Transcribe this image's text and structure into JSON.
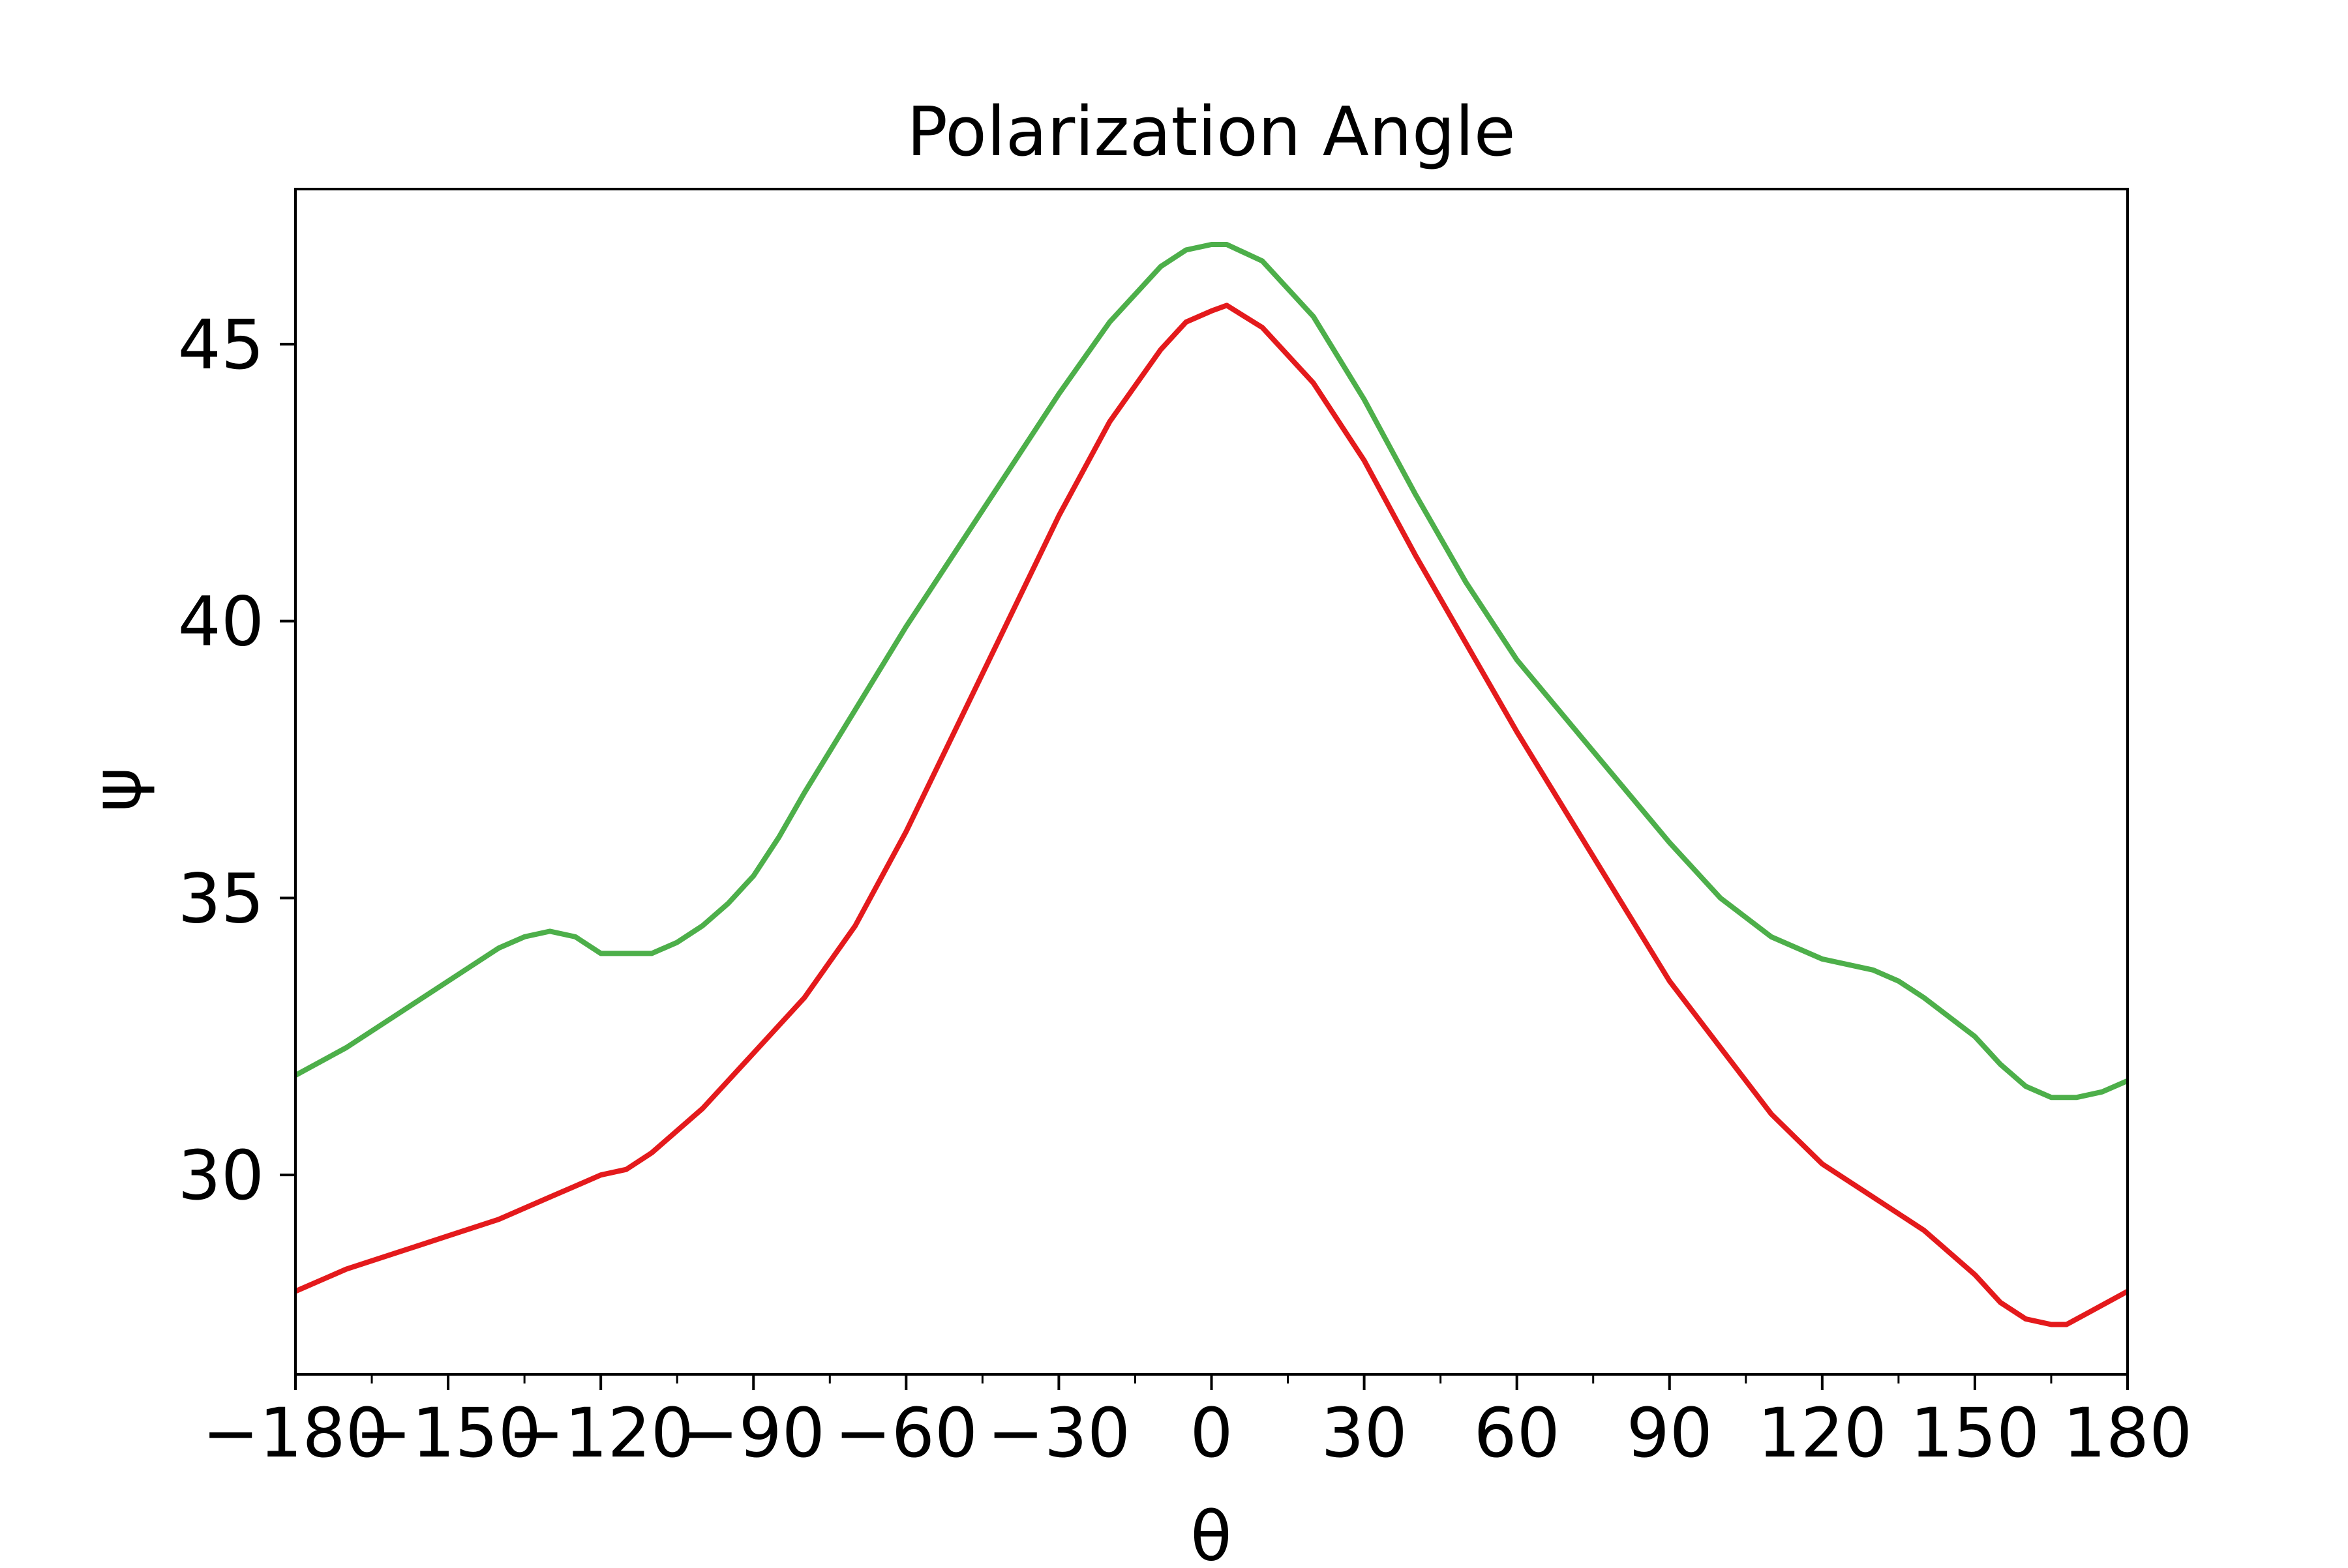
{
  "chart_data": {
    "type": "line",
    "title": "Polarization Angle",
    "xlabel": "θ",
    "ylabel": "ψ",
    "xlim": [
      -180,
      180
    ],
    "ylim": [
      26.4,
      47.8
    ],
    "grid": false,
    "legend": "none",
    "x_ticks": [
      -180,
      -150,
      -120,
      -90,
      -60,
      -30,
      0,
      30,
      60,
      90,
      120,
      150,
      180
    ],
    "x_tick_labels": [
      "−180",
      "−150",
      "−120",
      "−90",
      "−60",
      "−30",
      "0",
      "30",
      "60",
      "90",
      "120",
      "150",
      "180"
    ],
    "x_minor_ticks": [
      -165,
      -135,
      -105,
      -75,
      -45,
      -15,
      15,
      45,
      75,
      105,
      135,
      165
    ],
    "y_ticks": [
      30,
      35,
      40,
      45
    ],
    "y_tick_labels": [
      "30",
      "35",
      "40",
      "45"
    ],
    "series": [
      {
        "color": "#4daf4a",
        "points": [
          [
            -180,
            31.8
          ],
          [
            -170,
            32.3
          ],
          [
            -160,
            32.9
          ],
          [
            -150,
            33.5
          ],
          [
            -140,
            34.1
          ],
          [
            -135,
            34.3
          ],
          [
            -130,
            34.4
          ],
          [
            -125,
            34.3
          ],
          [
            -120,
            34.0
          ],
          [
            -115,
            34.0
          ],
          [
            -110,
            34.0
          ],
          [
            -105,
            34.2
          ],
          [
            -100,
            34.5
          ],
          [
            -95,
            34.9
          ],
          [
            -90,
            35.4
          ],
          [
            -85,
            36.1
          ],
          [
            -80,
            36.9
          ],
          [
            -70,
            38.4
          ],
          [
            -60,
            39.9
          ],
          [
            -50,
            41.3
          ],
          [
            -40,
            42.7
          ],
          [
            -30,
            44.1
          ],
          [
            -20,
            45.4
          ],
          [
            -10,
            46.4
          ],
          [
            -5,
            46.7
          ],
          [
            0,
            46.8
          ],
          [
            3,
            46.8
          ],
          [
            10,
            46.5
          ],
          [
            20,
            45.5
          ],
          [
            30,
            44.0
          ],
          [
            40,
            42.3
          ],
          [
            50,
            40.7
          ],
          [
            60,
            39.3
          ],
          [
            70,
            38.2
          ],
          [
            80,
            37.1
          ],
          [
            90,
            36.0
          ],
          [
            100,
            35.0
          ],
          [
            110,
            34.3
          ],
          [
            120,
            33.9
          ],
          [
            130,
            33.7
          ],
          [
            135,
            33.5
          ],
          [
            140,
            33.2
          ],
          [
            150,
            32.5
          ],
          [
            155,
            32.0
          ],
          [
            160,
            31.6
          ],
          [
            165,
            31.4
          ],
          [
            170,
            31.4
          ],
          [
            175,
            31.5
          ],
          [
            180,
            31.7
          ]
        ]
      },
      {
        "color": "#e41a1c",
        "points": [
          [
            -180,
            27.9
          ],
          [
            -170,
            28.3
          ],
          [
            -160,
            28.6
          ],
          [
            -150,
            28.9
          ],
          [
            -140,
            29.2
          ],
          [
            -130,
            29.6
          ],
          [
            -125,
            29.8
          ],
          [
            -120,
            30.0
          ],
          [
            -115,
            30.1
          ],
          [
            -110,
            30.4
          ],
          [
            -100,
            31.2
          ],
          [
            -90,
            32.2
          ],
          [
            -80,
            33.2
          ],
          [
            -70,
            34.5
          ],
          [
            -60,
            36.2
          ],
          [
            -50,
            38.1
          ],
          [
            -40,
            40.0
          ],
          [
            -30,
            41.9
          ],
          [
            -20,
            43.6
          ],
          [
            -10,
            44.9
          ],
          [
            -5,
            45.4
          ],
          [
            0,
            45.6
          ],
          [
            3,
            45.7
          ],
          [
            10,
            45.3
          ],
          [
            20,
            44.3
          ],
          [
            30,
            42.9
          ],
          [
            40,
            41.2
          ],
          [
            50,
            39.6
          ],
          [
            60,
            38.0
          ],
          [
            70,
            36.5
          ],
          [
            80,
            35.0
          ],
          [
            90,
            33.5
          ],
          [
            100,
            32.3
          ],
          [
            110,
            31.1
          ],
          [
            120,
            30.2
          ],
          [
            130,
            29.6
          ],
          [
            140,
            29.0
          ],
          [
            150,
            28.2
          ],
          [
            155,
            27.7
          ],
          [
            160,
            27.4
          ],
          [
            165,
            27.3
          ],
          [
            168,
            27.3
          ],
          [
            172,
            27.5
          ],
          [
            180,
            27.9
          ]
        ]
      }
    ]
  }
}
